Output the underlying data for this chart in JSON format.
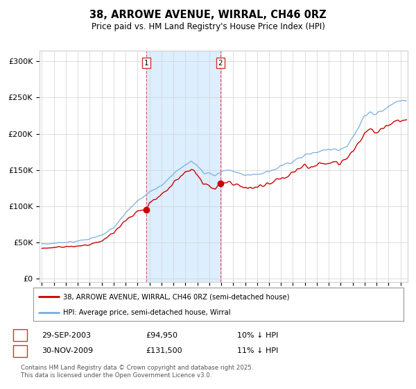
{
  "title": "38, ARROWE AVENUE, WIRRAL, CH46 0RZ",
  "subtitle": "Price paid vs. HM Land Registry's House Price Index (HPI)",
  "ylabel_ticks": [
    "£0",
    "£50K",
    "£100K",
    "£150K",
    "£200K",
    "£250K",
    "£300K"
  ],
  "ytick_vals": [
    0,
    50000,
    100000,
    150000,
    200000,
    250000,
    300000
  ],
  "ylim": [
    -5000,
    315000
  ],
  "xlim_start": 1994.8,
  "xlim_end": 2025.6,
  "purchase1_date": 2003.75,
  "purchase1_price": 94950,
  "purchase2_date": 2009.917,
  "purchase2_price": 131500,
  "legend_line1": "38, ARROWE AVENUE, WIRRAL, CH46 0RZ (semi-detached house)",
  "legend_line2": "HPI: Average price, semi-detached house, Wirral",
  "footer": "Contains HM Land Registry data © Crown copyright and database right 2025.\nThis data is licensed under the Open Government Licence v3.0.",
  "line_color_red": "#cc0000",
  "line_color_blue": "#7aaddc",
  "shade_color": "#ddeeff",
  "vline_color": "#cc3333",
  "grid_color": "#d0d0d0",
  "bg_color": "#ffffff"
}
